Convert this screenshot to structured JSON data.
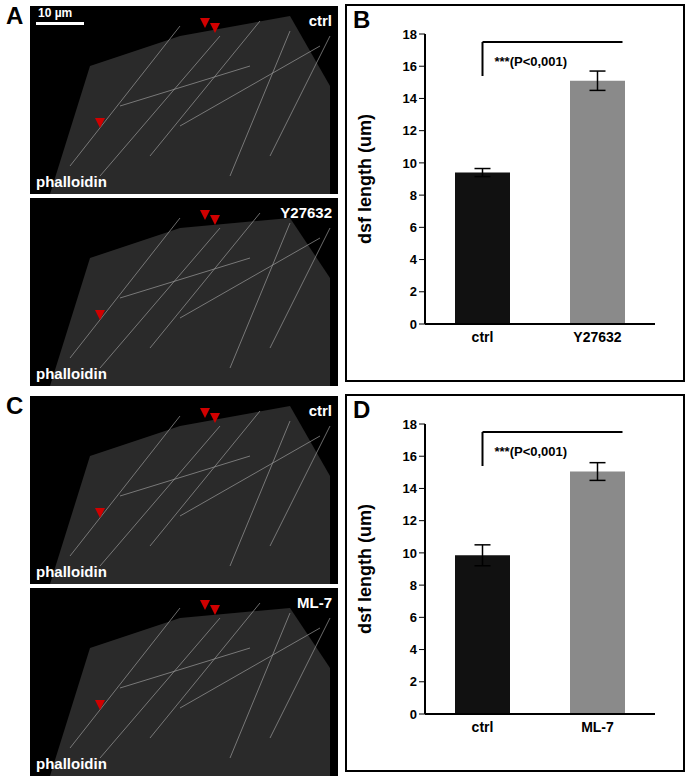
{
  "images": [
    {
      "panel": "A",
      "scale_bar": "10 µm",
      "frames": [
        {
          "label": "ctrl",
          "stain": "phalloidin"
        },
        {
          "label": "Y27632",
          "stain": "phalloidin"
        }
      ]
    },
    {
      "panel": "C",
      "frames": [
        {
          "label": "ctrl",
          "stain": "phalloidin"
        },
        {
          "label": "ML-7",
          "stain": "phalloidin"
        }
      ]
    }
  ],
  "chart_data": [
    {
      "panel": "B",
      "type": "bar",
      "categories": [
        "ctrl",
        "Y27632"
      ],
      "values": [
        9.4,
        15.1
      ],
      "errors": [
        0.25,
        0.6
      ],
      "colors": [
        "#111111",
        "#8a8a8a"
      ],
      "y_label": "dsf length (um)",
      "ylim": [
        0,
        18
      ],
      "yticks": [
        0,
        2,
        4,
        6,
        8,
        10,
        12,
        14,
        16,
        18
      ],
      "annotation": "***(P<0,001)"
    },
    {
      "panel": "D",
      "type": "bar",
      "categories": [
        "ctrl",
        "ML-7"
      ],
      "values": [
        9.85,
        15.05
      ],
      "errors": [
        0.65,
        0.55
      ],
      "colors": [
        "#111111",
        "#8a8a8a"
      ],
      "y_label": "dsf length (um)",
      "ylim": [
        0,
        18
      ],
      "yticks": [
        0,
        2,
        4,
        6,
        8,
        10,
        12,
        14,
        16,
        18
      ],
      "annotation": "***(P<0,001)"
    }
  ]
}
